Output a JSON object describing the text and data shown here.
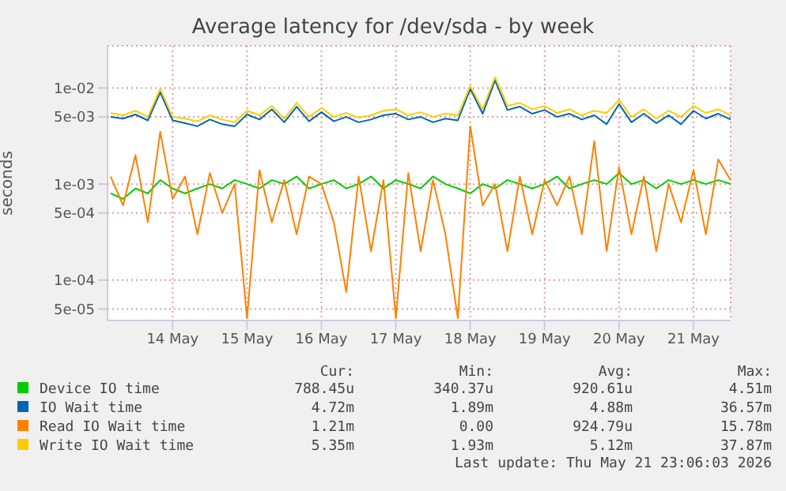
{
  "chart_data": {
    "type": "line",
    "title": "Average latency for /dev/sda - by week",
    "ylabel": "seconds",
    "log": "y",
    "grid": true,
    "legend": "bottom",
    "marker": "none",
    "line_style": "solid",
    "xlim": [
      "2026-05-13T03:00",
      "2026-05-21T12:00"
    ],
    "xticks": [
      {
        "value": "2026-05-14T00:00",
        "label": "14 May"
      },
      {
        "value": "2026-05-15T00:00",
        "label": "15 May"
      },
      {
        "value": "2026-05-16T00:00",
        "label": "16 May"
      },
      {
        "value": "2026-05-17T00:00",
        "label": "17 May"
      },
      {
        "value": "2026-05-18T00:00",
        "label": "18 May"
      },
      {
        "value": "2026-05-19T00:00",
        "label": "19 May"
      },
      {
        "value": "2026-05-20T00:00",
        "label": "20 May"
      },
      {
        "value": "2026-05-21T00:00",
        "label": "21 May"
      }
    ],
    "ylim": [
      3.8e-05,
      0.0275
    ],
    "yticks": [
      {
        "value": 5e-05,
        "label": "5e-05"
      },
      {
        "value": 0.0001,
        "label": "1e-04"
      },
      {
        "value": 0.0005,
        "label": "5e-04"
      },
      {
        "value": 0.001,
        "label": "1e-03"
      },
      {
        "value": 0.005,
        "label": "5e-03"
      },
      {
        "value": 0.01,
        "label": "1e-02"
      }
    ],
    "x": [
      "2026-05-13T04:00",
      "2026-05-13T08:00",
      "2026-05-13T12:00",
      "2026-05-13T16:00",
      "2026-05-13T20:00",
      "2026-05-14T00:00",
      "2026-05-14T04:00",
      "2026-05-14T08:00",
      "2026-05-14T12:00",
      "2026-05-14T16:00",
      "2026-05-14T20:00",
      "2026-05-15T00:00",
      "2026-05-15T04:00",
      "2026-05-15T08:00",
      "2026-05-15T12:00",
      "2026-05-15T16:00",
      "2026-05-15T20:00",
      "2026-05-16T00:00",
      "2026-05-16T04:00",
      "2026-05-16T08:00",
      "2026-05-16T12:00",
      "2026-05-16T16:00",
      "2026-05-16T20:00",
      "2026-05-17T00:00",
      "2026-05-17T04:00",
      "2026-05-17T08:00",
      "2026-05-17T12:00",
      "2026-05-17T16:00",
      "2026-05-17T20:00",
      "2026-05-18T00:00",
      "2026-05-18T04:00",
      "2026-05-18T08:00",
      "2026-05-18T12:00",
      "2026-05-18T16:00",
      "2026-05-18T20:00",
      "2026-05-19T00:00",
      "2026-05-19T04:00",
      "2026-05-19T08:00",
      "2026-05-19T12:00",
      "2026-05-19T16:00",
      "2026-05-19T20:00",
      "2026-05-20T00:00",
      "2026-05-20T04:00",
      "2026-05-20T08:00",
      "2026-05-20T12:00",
      "2026-05-20T16:00",
      "2026-05-20T20:00",
      "2026-05-21T00:00",
      "2026-05-21T04:00",
      "2026-05-21T08:00",
      "2026-05-21T12:00"
    ],
    "series": [
      {
        "name": "Device IO time",
        "color": "#00cc00",
        "values": [
          0.0008,
          0.0007,
          0.0009,
          0.0008,
          0.0011,
          0.0009,
          0.0008,
          0.0009,
          0.001,
          0.0009,
          0.0011,
          0.001,
          0.0009,
          0.0011,
          0.001,
          0.0012,
          0.0009,
          0.001,
          0.0011,
          0.0009,
          0.001,
          0.0012,
          0.0009,
          0.0011,
          0.001,
          0.0009,
          0.0012,
          0.001,
          0.0009,
          0.0008,
          0.001,
          0.0009,
          0.0011,
          0.001,
          0.0009,
          0.001,
          0.0012,
          0.0009,
          0.001,
          0.0011,
          0.001,
          0.0013,
          0.001,
          0.0011,
          0.0009,
          0.0011,
          0.001,
          0.0011,
          0.001,
          0.0011,
          0.001
        ]
      },
      {
        "name": "IO Wait time",
        "color": "#0066b3",
        "values": [
          0.005,
          0.0048,
          0.0053,
          0.0046,
          0.009,
          0.0046,
          0.0043,
          0.004,
          0.0047,
          0.0042,
          0.004,
          0.0053,
          0.0047,
          0.006,
          0.0044,
          0.0064,
          0.0045,
          0.0056,
          0.0045,
          0.005,
          0.0044,
          0.0047,
          0.0052,
          0.0054,
          0.0047,
          0.005,
          0.0044,
          0.0048,
          0.0046,
          0.0098,
          0.0054,
          0.012,
          0.0059,
          0.0064,
          0.0054,
          0.0059,
          0.005,
          0.0054,
          0.0047,
          0.0052,
          0.0042,
          0.0068,
          0.0044,
          0.0054,
          0.0043,
          0.0052,
          0.0042,
          0.0058,
          0.0048,
          0.0054,
          0.0047
        ]
      },
      {
        "name": "Read IO Wait time",
        "color": "#ff8000",
        "values": [
          0.0012,
          0.0006,
          0.002,
          0.0004,
          0.0035,
          0.0007,
          0.0012,
          0.0003,
          0.0013,
          0.0005,
          0.001,
          4e-05,
          0.0014,
          0.0004,
          0.0011,
          0.0003,
          0.0012,
          0.001,
          0.0004,
          7.5e-05,
          0.0012,
          0.0002,
          0.0011,
          4e-05,
          0.0013,
          0.0002,
          0.0011,
          0.0003,
          4e-05,
          0.004,
          0.0006,
          0.001,
          0.0002,
          0.0012,
          0.0003,
          0.0011,
          0.0006,
          0.0012,
          0.0003,
          0.0028,
          0.0002,
          0.0015,
          0.0003,
          0.0012,
          0.0002,
          0.001,
          0.0004,
          0.0014,
          0.0003,
          0.0018,
          0.0011
        ]
      },
      {
        "name": "Write IO Wait time",
        "color": "#ffcc00",
        "values": [
          0.0055,
          0.0052,
          0.0058,
          0.005,
          0.0098,
          0.005,
          0.0048,
          0.0045,
          0.0052,
          0.0047,
          0.0044,
          0.0058,
          0.0052,
          0.0065,
          0.0048,
          0.007,
          0.005,
          0.0062,
          0.005,
          0.0055,
          0.0049,
          0.0052,
          0.0058,
          0.006,
          0.0052,
          0.0056,
          0.005,
          0.0054,
          0.0052,
          0.0105,
          0.006,
          0.013,
          0.0065,
          0.007,
          0.006,
          0.0065,
          0.0055,
          0.006,
          0.0052,
          0.0058,
          0.0055,
          0.0075,
          0.005,
          0.006,
          0.0048,
          0.0058,
          0.005,
          0.0065,
          0.0055,
          0.006,
          0.0052
        ]
      }
    ],
    "annotations": [
      "Cur:",
      "Min:",
      "Avg:",
      "Max:",
      "788.45u",
      "340.37u",
      "920.61u",
      "4.51m",
      "4.72m",
      "1.89m",
      "4.88m",
      "36.57m",
      "1.21m",
      "0.00",
      "924.79u",
      "15.78m",
      "5.35m",
      "1.93m",
      "5.12m",
      "37.87m",
      "Last update: Thu May 21 23:06:03 2026"
    ]
  }
}
